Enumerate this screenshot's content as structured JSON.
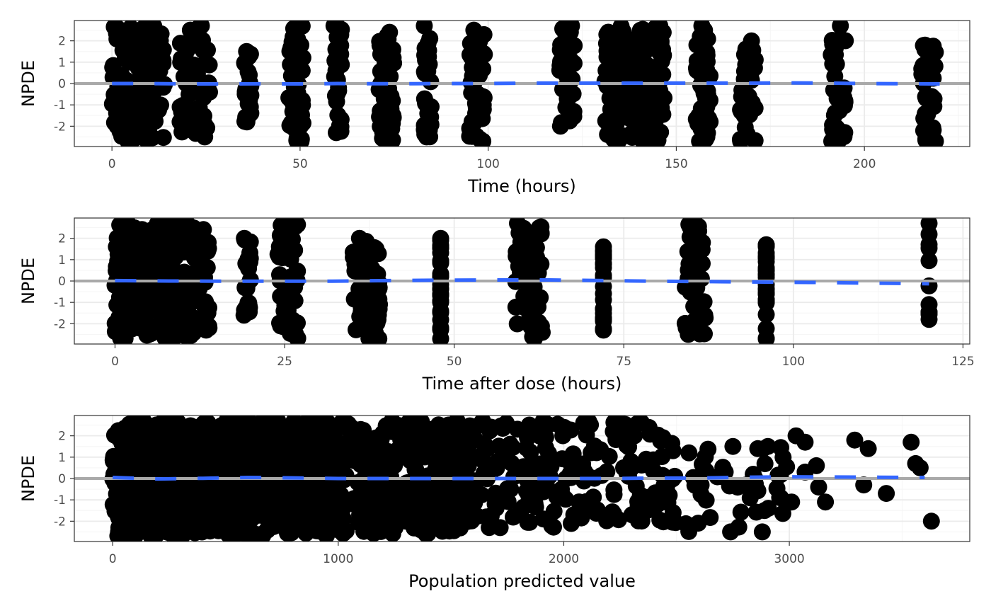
{
  "colors": {
    "points": "#000000",
    "trend": "#3366FF",
    "zero_line": "#A9A9A9",
    "grid_major": "#EBEBEB",
    "grid_minor": "#F5F5F5",
    "panel_border": "#333333",
    "tick_text": "#4D4D4D"
  },
  "chart_data": [
    {
      "type": "scatter",
      "xlabel": "Time (hours)",
      "ylabel": "NPDE",
      "xlim": [
        -10,
        228
      ],
      "ylim": [
        -2.95,
        2.95
      ],
      "x_ticks": [
        0,
        50,
        100,
        150,
        200
      ],
      "x_tick_labels": [
        "0",
        "50",
        "100",
        "150",
        "200"
      ],
      "y_ticks": [
        -2,
        -1,
        0,
        1,
        2
      ],
      "y_tick_labels": [
        "-2",
        "-1",
        "0",
        "1",
        "2"
      ],
      "reference_line_y": 0,
      "grid": true,
      "point_clusters": [
        {
          "x_min": 0,
          "x_max": 14,
          "y_min": -2.7,
          "y_max": 2.7,
          "count": 160
        },
        {
          "x_min": 18,
          "x_max": 26,
          "y_min": -2.5,
          "y_max": 2.7,
          "count": 55
        },
        {
          "x_min": 35,
          "x_max": 37,
          "y_min": -1.8,
          "y_max": 1.5,
          "count": 22
        },
        {
          "x_min": 47,
          "x_max": 51,
          "y_min": -2.7,
          "y_max": 2.7,
          "count": 50
        },
        {
          "x_min": 59,
          "x_max": 61,
          "y_min": -2.3,
          "y_max": 2.7,
          "count": 30
        },
        {
          "x_min": 71,
          "x_max": 75,
          "y_min": -2.7,
          "y_max": 2.4,
          "count": 50
        },
        {
          "x_min": 83,
          "x_max": 85,
          "y_min": -2.5,
          "y_max": 2.7,
          "count": 28
        },
        {
          "x_min": 95,
          "x_max": 99,
          "y_min": -2.7,
          "y_max": 2.5,
          "count": 50
        },
        {
          "x_min": 119,
          "x_max": 123,
          "y_min": -2.0,
          "y_max": 2.7,
          "count": 35
        },
        {
          "x_min": 131,
          "x_max": 147,
          "y_min": -2.7,
          "y_max": 2.7,
          "count": 170
        },
        {
          "x_min": 155,
          "x_max": 159,
          "y_min": -2.7,
          "y_max": 2.7,
          "count": 45
        },
        {
          "x_min": 167,
          "x_max": 171,
          "y_min": -2.7,
          "y_max": 2.0,
          "count": 40
        },
        {
          "x_min": 191,
          "x_max": 195,
          "y_min": -2.7,
          "y_max": 2.7,
          "count": 40
        },
        {
          "x_min": 215,
          "x_max": 219,
          "y_min": -2.7,
          "y_max": 1.8,
          "count": 40
        }
      ],
      "trend": {
        "x": [
          0,
          10,
          20,
          30,
          40,
          50,
          60,
          70,
          80,
          90,
          100,
          110,
          120,
          130,
          140,
          150,
          160,
          170,
          180,
          190,
          200,
          210,
          220
        ],
        "y": [
          0.0,
          0.0,
          -0.02,
          -0.02,
          -0.01,
          -0.02,
          0.0,
          -0.01,
          -0.01,
          0.0,
          0.0,
          0.02,
          0.02,
          0.02,
          0.02,
          0.02,
          0.02,
          0.02,
          0.03,
          0.02,
          0.0,
          -0.01,
          -0.02
        ]
      }
    },
    {
      "type": "scatter",
      "xlabel": "Time after dose (hours)",
      "ylabel": "NPDE",
      "xlim": [
        -6,
        126
      ],
      "ylim": [
        -2.95,
        2.95
      ],
      "x_ticks": [
        0,
        25,
        50,
        75,
        100,
        125
      ],
      "x_tick_labels": [
        "0",
        "25",
        "50",
        "75",
        "100",
        "125"
      ],
      "y_ticks": [
        -2,
        -1,
        0,
        1,
        2
      ],
      "y_tick_labels": [
        "-2",
        "-1",
        "0",
        "1",
        "2"
      ],
      "reference_line_y": 0,
      "grid": true,
      "point_clusters": [
        {
          "x_min": 0,
          "x_max": 14,
          "y_min": -2.7,
          "y_max": 2.7,
          "count": 300
        },
        {
          "x_min": 19,
          "x_max": 20,
          "y_min": -1.6,
          "y_max": 2.0,
          "count": 20
        },
        {
          "x_min": 24,
          "x_max": 27,
          "y_min": -2.7,
          "y_max": 2.7,
          "count": 50
        },
        {
          "x_min": 35,
          "x_max": 39,
          "y_min": -2.7,
          "y_max": 2.0,
          "count": 60
        },
        {
          "x_min": 48,
          "x_max": 48,
          "y_min": -2.7,
          "y_max": 2.0,
          "count": 24
        },
        {
          "x_min": 59,
          "x_max": 63,
          "y_min": -2.7,
          "y_max": 2.7,
          "count": 60
        },
        {
          "x_min": 72,
          "x_max": 72,
          "y_min": -2.3,
          "y_max": 1.6,
          "count": 24
        },
        {
          "x_min": 84,
          "x_max": 87,
          "y_min": -2.5,
          "y_max": 2.7,
          "count": 55
        },
        {
          "x_min": 96,
          "x_max": 96,
          "y_min": -2.7,
          "y_max": 1.7,
          "count": 28
        },
        {
          "x_min": 120,
          "x_max": 120,
          "y_min": -1.8,
          "y_max": 2.7,
          "count": 9
        }
      ],
      "trend": {
        "x": [
          0,
          8,
          16,
          24,
          32,
          40,
          48,
          56,
          64,
          72,
          80,
          88,
          96,
          104,
          112,
          120
        ],
        "y": [
          0.02,
          0.0,
          -0.01,
          -0.01,
          -0.01,
          0.02,
          0.04,
          0.05,
          0.05,
          0.02,
          -0.01,
          -0.03,
          -0.05,
          -0.07,
          -0.1,
          -0.13
        ]
      }
    },
    {
      "type": "scatter",
      "xlabel": "Population predicted value",
      "ylabel": "NPDE",
      "xlim": [
        -170,
        3800
      ],
      "ylim": [
        -2.95,
        2.95
      ],
      "x_ticks": [
        0,
        1000,
        2000,
        3000
      ],
      "x_tick_labels": [
        "0",
        "1000",
        "2000",
        "3000"
      ],
      "y_ticks": [
        -2,
        -1,
        0,
        1,
        2
      ],
      "y_tick_labels": [
        "-2",
        "-1",
        "0",
        "1",
        "2"
      ],
      "reference_line_y": 0,
      "grid": true,
      "point_clusters": [
        {
          "x_min": 0,
          "x_max": 1000,
          "y_min": -2.7,
          "y_max": 2.7,
          "count": 900
        },
        {
          "x_min": 1000,
          "x_max": 1600,
          "y_min": -2.6,
          "y_max": 2.7,
          "count": 300
        },
        {
          "x_min": 1600,
          "x_max": 2500,
          "y_min": -2.3,
          "y_max": 2.7,
          "count": 200
        },
        {
          "x_min": 2500,
          "x_max": 3000,
          "y_min": -2.5,
          "y_max": 1.5,
          "count": 40
        }
      ],
      "points": [
        {
          "x": 3030,
          "y": 2.0
        },
        {
          "x": 3070,
          "y": 1.7
        },
        {
          "x": 3290,
          "y": 1.8
        },
        {
          "x": 3350,
          "y": 1.4
        },
        {
          "x": 3540,
          "y": 1.7
        },
        {
          "x": 3560,
          "y": 0.7
        },
        {
          "x": 3580,
          "y": 0.5
        },
        {
          "x": 3120,
          "y": 0.6
        },
        {
          "x": 3070,
          "y": 0.3
        },
        {
          "x": 3130,
          "y": -0.4
        },
        {
          "x": 3160,
          "y": -1.1
        },
        {
          "x": 3330,
          "y": -0.3
        },
        {
          "x": 3430,
          "y": -0.7
        },
        {
          "x": 3010,
          "y": -1.1
        },
        {
          "x": 2890,
          "y": -1.5
        },
        {
          "x": 3630,
          "y": -2.0
        },
        {
          "x": 2880,
          "y": -2.5
        },
        {
          "x": 2860,
          "y": 1.4
        },
        {
          "x": 2840,
          "y": 0.2
        },
        {
          "x": 2750,
          "y": 1.5
        }
      ],
      "trend": {
        "x": [
          0,
          200,
          400,
          600,
          800,
          1000,
          1200,
          1400,
          1600,
          1800,
          2000,
          2200,
          2400,
          2600,
          2800,
          3000,
          3200,
          3400,
          3600
        ],
        "y": [
          0.05,
          -0.02,
          0.01,
          0.05,
          0.03,
          0.0,
          0.0,
          0.0,
          0.0,
          0.0,
          0.0,
          0.0,
          0.02,
          0.02,
          0.06,
          0.08,
          0.07,
          0.06,
          0.05
        ]
      }
    }
  ]
}
